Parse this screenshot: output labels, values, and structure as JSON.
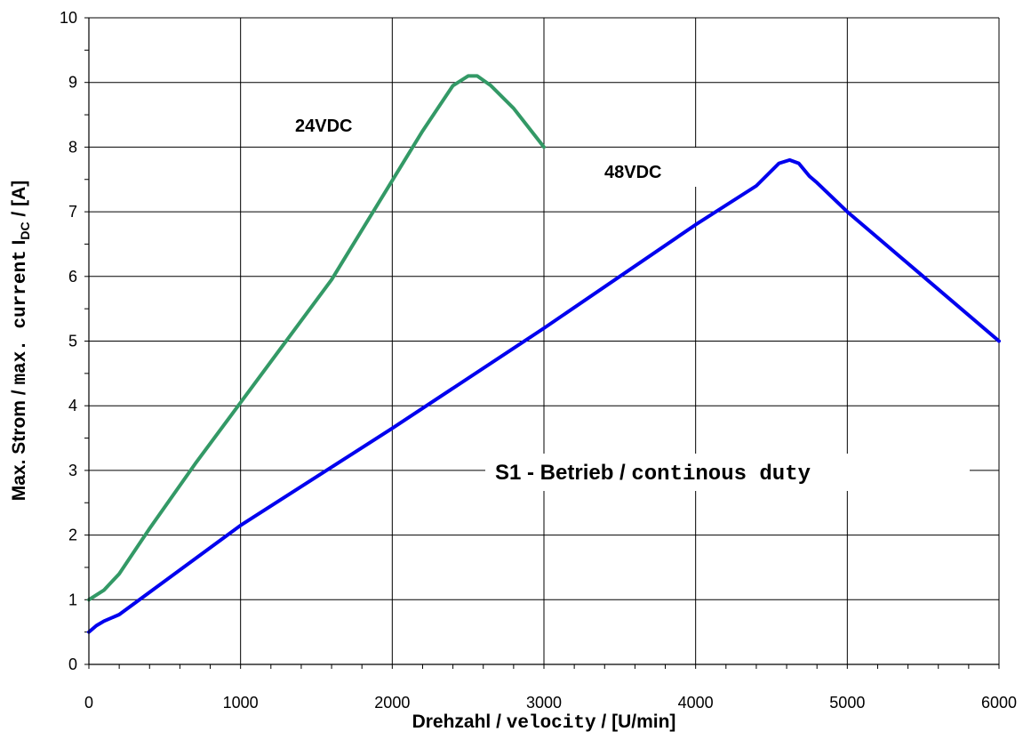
{
  "chart_data": {
    "type": "line",
    "xlabel": {
      "main": "Drehzahl / ",
      "mono": "velocity",
      "tail": " / [U/min]"
    },
    "ylabel": {
      "main": "Max. Strom / ",
      "mono": "max. current",
      "sym": " I",
      "sub": "DC",
      "tail": " / [A]"
    },
    "xlim": [
      0,
      6000
    ],
    "ylim": [
      0,
      10
    ],
    "x_ticks": [
      0,
      1000,
      2000,
      3000,
      4000,
      5000,
      6000
    ],
    "y_ticks": [
      0,
      1,
      2,
      3,
      4,
      5,
      6,
      7,
      8,
      9,
      10
    ],
    "grid": true,
    "series": [
      {
        "name": "24VDC",
        "color": "#339966",
        "points": [
          [
            0,
            1.0
          ],
          [
            100,
            1.15
          ],
          [
            200,
            1.4
          ],
          [
            400,
            2.1
          ],
          [
            700,
            3.1
          ],
          [
            1000,
            4.05
          ],
          [
            1300,
            5.0
          ],
          [
            1600,
            5.95
          ],
          [
            1900,
            7.1
          ],
          [
            2200,
            8.25
          ],
          [
            2400,
            8.95
          ],
          [
            2500,
            9.1
          ],
          [
            2560,
            9.1
          ],
          [
            2650,
            8.95
          ],
          [
            2800,
            8.6
          ],
          [
            3000,
            8.0
          ]
        ]
      },
      {
        "name": "48VDC",
        "color": "#0000ee",
        "points": [
          [
            0,
            0.5
          ],
          [
            50,
            0.6
          ],
          [
            100,
            0.67
          ],
          [
            200,
            0.77
          ],
          [
            1000,
            2.15
          ],
          [
            2000,
            3.65
          ],
          [
            3000,
            5.2
          ],
          [
            4000,
            6.8
          ],
          [
            4400,
            7.4
          ],
          [
            4550,
            7.75
          ],
          [
            4620,
            7.8
          ],
          [
            4680,
            7.75
          ],
          [
            4750,
            7.55
          ],
          [
            4800,
            7.45
          ],
          [
            5000,
            7.0
          ],
          [
            5500,
            6.0
          ],
          [
            6000,
            5.0
          ]
        ]
      }
    ],
    "annotations": {
      "label_24": "24VDC",
      "label_48": "48VDC",
      "duty_main": "S1 - Betrieb / ",
      "duty_mono": "continous duty"
    }
  }
}
